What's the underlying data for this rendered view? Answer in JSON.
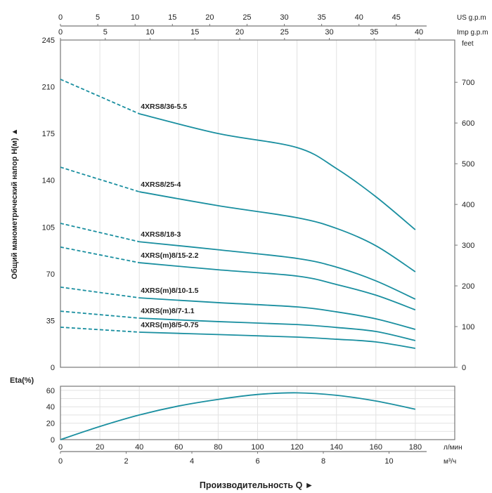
{
  "chart_data": [
    {
      "type": "line",
      "title": "",
      "ylabel": "Общий манометрический напор H(м) ▲",
      "xlabel": "Производительность Q ►",
      "x_unit": "л/мин",
      "x_unit_m3h": "м³/ч",
      "top_axis_us_label": "US g.p.m",
      "top_axis_imp_label": "Imp g.p.m",
      "right_axis_label": "feet",
      "xlim": [
        0,
        200
      ],
      "ylim": [
        0,
        245
      ],
      "y_ticks": [
        0,
        35,
        70,
        105,
        140,
        175,
        210,
        245
      ],
      "feet_ticks": [
        0,
        100,
        200,
        300,
        400,
        500,
        600,
        700
      ],
      "us_gpm_ticks": [
        0,
        5,
        10,
        15,
        20,
        25,
        30,
        35,
        40,
        45
      ],
      "imp_gpm_ticks": [
        0,
        5,
        10,
        15,
        20,
        25,
        30,
        35,
        40
      ],
      "dashed_until_x": 40,
      "x": [
        0,
        40,
        80,
        120,
        140,
        160,
        180
      ],
      "series": [
        {
          "name": "4XRS8/36-5.5",
          "values": [
            215.6,
            189.8,
            175,
            164.5,
            148.8,
            127.7,
            103
          ]
        },
        {
          "name": "4XRS8/25-4",
          "values": [
            149.8,
            131.4,
            121,
            112,
            104,
            91,
            71.5
          ]
        },
        {
          "name": "4XRS8/18-3",
          "values": [
            107.8,
            94,
            88,
            81.5,
            75,
            64.7,
            51
          ]
        },
        {
          "name": "4XRS(m)8/15-2.2",
          "values": [
            90,
            78.3,
            73,
            68.3,
            62,
            54,
            43
          ]
        },
        {
          "name": "4XRS(m)8/10-1.5",
          "values": [
            60,
            52,
            48.4,
            45.2,
            41.5,
            36.3,
            28.4
          ]
        },
        {
          "name": "4XRS(m)8/7-1.1",
          "values": [
            42,
            36.8,
            34.2,
            32,
            29.8,
            26.8,
            20
          ]
        },
        {
          "name": "4XRS(m)8/5-0.75",
          "values": [
            30,
            26.3,
            24.5,
            22.6,
            21,
            19,
            14.2
          ]
        }
      ],
      "color": "#1a8fa0"
    },
    {
      "type": "line",
      "ylabel": "Eta(%)",
      "ylim": [
        0,
        65
      ],
      "y_ticks": [
        0,
        20,
        40,
        60
      ],
      "x_ticks": [
        0,
        20,
        40,
        60,
        80,
        100,
        120,
        140,
        160,
        180
      ],
      "m3h_ticks": [
        0,
        2,
        4,
        6,
        8,
        10
      ],
      "x": [
        0,
        20,
        40,
        60,
        80,
        100,
        120,
        140,
        160,
        180
      ],
      "values": [
        0,
        16,
        30,
        41,
        49,
        55,
        57,
        54,
        47,
        37
      ],
      "color": "#1a8fa0"
    }
  ]
}
